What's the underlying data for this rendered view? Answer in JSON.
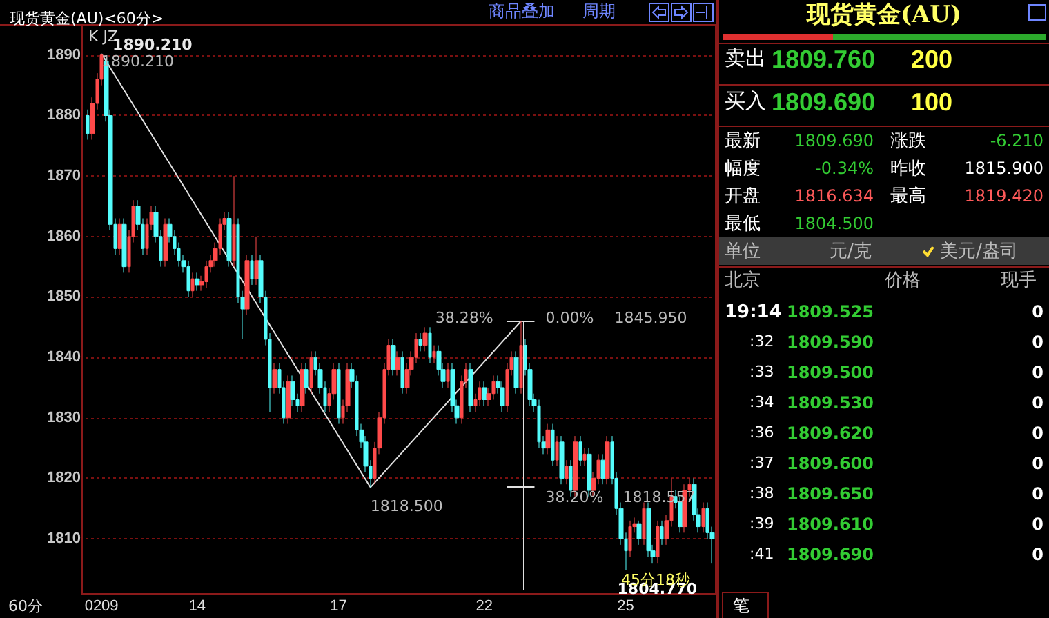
{
  "chart_data": [
    {
      "type": "candlestick",
      "title": "现货黄金(AU)<60分>",
      "categories": [
        null,
        null,
        null,
        "0209",
        null,
        null,
        null,
        null,
        null,
        null,
        null,
        null,
        null,
        null,
        null,
        null,
        null,
        null,
        null,
        null,
        null,
        null,
        null,
        null,
        "14",
        null,
        null,
        null,
        null,
        null,
        null,
        null,
        null,
        null,
        null,
        null,
        null,
        null,
        null,
        null,
        null,
        null,
        null,
        null,
        null,
        null,
        null,
        null,
        null,
        null,
        null,
        null,
        null,
        null,
        null,
        "17",
        null,
        null,
        null,
        null,
        null,
        null,
        null,
        null,
        null,
        null,
        null,
        null,
        null,
        null,
        null,
        null,
        null,
        null,
        null,
        null,
        null,
        null,
        null,
        null,
        null,
        null,
        null,
        null,
        null,
        null,
        null,
        "22",
        null,
        null,
        null,
        null,
        null,
        null,
        null,
        null,
        null,
        null,
        null,
        null,
        null,
        null,
        null,
        null,
        null,
        null,
        null,
        null,
        null,
        null,
        null,
        null,
        null,
        null,
        null,
        null,
        null,
        null,
        "25",
        null,
        null,
        null,
        null,
        null,
        null,
        null,
        null,
        null,
        null,
        null,
        null,
        null,
        null,
        null,
        null,
        null,
        null,
        null
      ],
      "ohlc": [
        [
          1880,
          1881,
          1876,
          1877
        ],
        [
          1877,
          1883,
          1876,
          1882
        ],
        [
          1882,
          1887,
          1881,
          1886
        ],
        [
          1886,
          1890.21,
          1885,
          1890
        ],
        [
          1889,
          1889.5,
          1879,
          1880
        ],
        [
          1880,
          1881,
          1861,
          1862
        ],
        [
          1862,
          1863,
          1857,
          1858
        ],
        [
          1858,
          1863,
          1857,
          1862
        ],
        [
          1862,
          1863,
          1854,
          1855
        ],
        [
          1855,
          1861,
          1854,
          1860
        ],
        [
          1860,
          1866,
          1859,
          1865
        ],
        [
          1865,
          1866,
          1861,
          1862
        ],
        [
          1862,
          1863,
          1857,
          1858
        ],
        [
          1858,
          1863,
          1857,
          1862
        ],
        [
          1862,
          1865,
          1861,
          1864
        ],
        [
          1864,
          1865,
          1859,
          1860
        ],
        [
          1860,
          1861,
          1855,
          1856
        ],
        [
          1856,
          1863,
          1855,
          1862
        ],
        [
          1862,
          1863,
          1859,
          1860
        ],
        [
          1860,
          1861,
          1857,
          1858
        ],
        [
          1858,
          1859,
          1855,
          1856
        ],
        [
          1856,
          1857,
          1854,
          1855
        ],
        [
          1855,
          1856,
          1850,
          1851
        ],
        [
          1851,
          1854,
          1850,
          1853
        ],
        [
          1853,
          1854,
          1851,
          1852
        ],
        [
          1852,
          1853.5,
          1851,
          1852.5
        ],
        [
          1852.5,
          1856,
          1851.5,
          1855
        ],
        [
          1855,
          1857,
          1854,
          1856
        ],
        [
          1856,
          1859,
          1855,
          1858
        ],
        [
          1858,
          1863,
          1857,
          1862
        ],
        [
          1862,
          1864,
          1861,
          1863
        ],
        [
          1863,
          1864,
          1855,
          1856
        ],
        [
          1856,
          1870,
          1855,
          1862
        ],
        [
          1862,
          1863,
          1849,
          1850
        ],
        [
          1850,
          1851,
          1843,
          1848
        ],
        [
          1848,
          1857,
          1847,
          1856
        ],
        [
          1856,
          1857,
          1852,
          1853
        ],
        [
          1853,
          1860,
          1852,
          1856
        ],
        [
          1856,
          1857,
          1849,
          1850
        ],
        [
          1850,
          1851,
          1842,
          1843
        ],
        [
          1843,
          1844,
          1831,
          1835
        ],
        [
          1835,
          1839,
          1834,
          1838
        ],
        [
          1838,
          1839,
          1834,
          1835
        ],
        [
          1835,
          1836,
          1829,
          1830
        ],
        [
          1830,
          1837,
          1829,
          1836
        ],
        [
          1836,
          1837,
          1832,
          1833
        ],
        [
          1833,
          1834,
          1831,
          1832
        ],
        [
          1832,
          1839,
          1831,
          1838
        ],
        [
          1838,
          1839,
          1834,
          1835
        ],
        [
          1835,
          1841,
          1834,
          1840
        ],
        [
          1840,
          1841,
          1837,
          1838
        ],
        [
          1838,
          1839,
          1834,
          1835
        ],
        [
          1835,
          1836,
          1831,
          1832
        ],
        [
          1832,
          1835,
          1831,
          1834
        ],
        [
          1834,
          1839,
          1833,
          1838
        ],
        [
          1838,
          1839,
          1829,
          1830
        ],
        [
          1830,
          1833,
          1829,
          1832
        ],
        [
          1832,
          1839,
          1831,
          1838
        ],
        [
          1838,
          1839,
          1835,
          1836
        ],
        [
          1836,
          1837,
          1827,
          1828
        ],
        [
          1828,
          1829,
          1825,
          1826
        ],
        [
          1826,
          1827,
          1821,
          1822
        ],
        [
          1822,
          1823,
          1818.5,
          1820
        ],
        [
          1820,
          1826,
          1819,
          1825
        ],
        [
          1825,
          1831,
          1824,
          1830
        ],
        [
          1830,
          1839,
          1829,
          1838
        ],
        [
          1838,
          1843,
          1837,
          1842
        ],
        [
          1842,
          1843,
          1837,
          1838
        ],
        [
          1838,
          1841,
          1837,
          1840
        ],
        [
          1840,
          1841,
          1834,
          1835
        ],
        [
          1835,
          1839,
          1834,
          1838
        ],
        [
          1838,
          1841,
          1837,
          1840
        ],
        [
          1840,
          1844,
          1839,
          1843
        ],
        [
          1843,
          1844,
          1841,
          1842
        ],
        [
          1842,
          1845,
          1841,
          1844
        ],
        [
          1844,
          1845,
          1839,
          1840
        ],
        [
          1840,
          1842,
          1839,
          1841
        ],
        [
          1841,
          1842,
          1837,
          1838
        ],
        [
          1838,
          1839,
          1835,
          1836
        ],
        [
          1836,
          1839,
          1835,
          1838
        ],
        [
          1838,
          1839,
          1831,
          1832
        ],
        [
          1832,
          1833,
          1829,
          1830
        ],
        [
          1830,
          1837,
          1829,
          1836
        ],
        [
          1836,
          1839,
          1835,
          1838
        ],
        [
          1838,
          1839,
          1831,
          1832
        ],
        [
          1832,
          1834,
          1831,
          1833
        ],
        [
          1833,
          1836,
          1832,
          1835
        ],
        [
          1835,
          1836,
          1832,
          1833
        ],
        [
          1833,
          1835,
          1832,
          1834
        ],
        [
          1834,
          1837,
          1833,
          1836
        ],
        [
          1836,
          1837,
          1834,
          1835
        ],
        [
          1835,
          1836,
          1831,
          1832
        ],
        [
          1832,
          1839,
          1831,
          1838
        ],
        [
          1838,
          1841,
          1837,
          1840
        ],
        [
          1840,
          1841,
          1834,
          1835
        ],
        [
          1835,
          1845.95,
          1834,
          1842
        ],
        [
          1842,
          1843,
          1837,
          1838
        ],
        [
          1838,
          1839,
          1832,
          1833
        ],
        [
          1833,
          1834,
          1831,
          1832
        ],
        [
          1832,
          1833,
          1825,
          1826
        ],
        [
          1826,
          1827,
          1824,
          1825
        ],
        [
          1825,
          1829,
          1824,
          1828
        ],
        [
          1828,
          1829,
          1822,
          1823
        ],
        [
          1823,
          1827,
          1822,
          1826
        ],
        [
          1826,
          1827,
          1819,
          1820
        ],
        [
          1820,
          1823,
          1819,
          1822
        ],
        [
          1822,
          1823,
          1817,
          1818
        ],
        [
          1818,
          1827,
          1817,
          1826
        ],
        [
          1826,
          1827,
          1822,
          1823
        ],
        [
          1823,
          1825,
          1822,
          1824
        ],
        [
          1824,
          1825,
          1817,
          1818
        ],
        [
          1818,
          1821,
          1817,
          1820
        ],
        [
          1820,
          1824,
          1819,
          1823
        ],
        [
          1823,
          1824,
          1819,
          1820
        ],
        [
          1820,
          1827,
          1819,
          1826
        ],
        [
          1826,
          1827,
          1819,
          1820
        ],
        [
          1820,
          1821,
          1814,
          1815
        ],
        [
          1815,
          1816,
          1809,
          1810
        ],
        [
          1810,
          1811,
          1804.77,
          1808
        ],
        [
          1808,
          1813,
          1807,
          1812
        ],
        [
          1812,
          1813.5,
          1811,
          1812.5
        ],
        [
          1812.5,
          1813,
          1809,
          1810
        ],
        [
          1810,
          1816,
          1809,
          1815
        ],
        [
          1815,
          1816,
          1807,
          1808
        ],
        [
          1808,
          1809,
          1806,
          1807
        ],
        [
          1807,
          1813,
          1806,
          1812
        ],
        [
          1812,
          1813,
          1809,
          1810
        ],
        [
          1810,
          1814,
          1809,
          1813
        ],
        [
          1813,
          1820,
          1812,
          1817
        ],
        [
          1817,
          1818,
          1815,
          1816
        ],
        [
          1816,
          1817,
          1811,
          1812
        ],
        [
          1812,
          1819,
          1811,
          1818
        ],
        [
          1818,
          1820,
          1817,
          1819
        ],
        [
          1819,
          1820,
          1813,
          1814
        ],
        [
          1814,
          1815,
          1811,
          1812
        ],
        [
          1812,
          1816,
          1811,
          1815
        ],
        [
          1815,
          1816,
          1810,
          1811
        ],
        [
          1811,
          1812,
          1806,
          1810
        ]
      ],
      "series": [
        {
          "type": "line",
          "color": "#e0e0e0",
          "values": [
            null,
            null,
            null,
            1890.21,
            null,
            null,
            null,
            null,
            null,
            null,
            null,
            null,
            null,
            null,
            null,
            null,
            null,
            null,
            null,
            null,
            null,
            null,
            null,
            null,
            null,
            null,
            null,
            null,
            null,
            null,
            null,
            null,
            null,
            null,
            null,
            null,
            null,
            null,
            null,
            null,
            null,
            null,
            null,
            null,
            null,
            null,
            null,
            null,
            null,
            null,
            null,
            null,
            null,
            null,
            null,
            null,
            null,
            null,
            null,
            null,
            null,
            null,
            1818.5,
            null,
            null,
            null,
            null,
            null,
            null,
            null,
            null,
            null,
            null,
            null,
            null,
            null,
            null,
            null,
            null,
            null,
            null,
            null,
            null,
            null,
            null,
            null,
            null,
            null,
            null,
            null,
            null,
            null,
            null,
            null,
            null,
            1845.95,
            null,
            null,
            null,
            null,
            null,
            null,
            null,
            null,
            null,
            null,
            null,
            null,
            null,
            null,
            null,
            null,
            null,
            null,
            null,
            null,
            null,
            null,
            null,
            null,
            null,
            null,
            null,
            null,
            null,
            null,
            null,
            null,
            null,
            null,
            null,
            null,
            null,
            null,
            null,
            null,
            null,
            null
          ]
        },
        {
          "type": "line",
          "color": "#e0e0e0",
          "values": [
            null,
            null,
            null,
            null,
            null,
            null,
            null,
            null,
            null,
            null,
            null,
            null,
            null,
            null,
            null,
            null,
            null,
            null,
            null,
            null,
            null,
            null,
            null,
            null,
            null,
            null,
            null,
            null,
            null,
            null,
            null,
            null,
            null,
            null,
            null,
            null,
            null,
            null,
            null,
            null,
            null,
            null,
            null,
            null,
            null,
            null,
            null,
            null,
            null,
            null,
            null,
            null,
            null,
            null,
            null,
            null,
            null,
            null,
            null,
            null,
            null,
            null,
            null,
            null,
            null,
            null,
            null,
            null,
            null,
            null,
            null,
            null,
            null,
            null,
            null,
            null,
            null,
            null,
            null,
            null,
            null,
            null,
            null,
            null,
            null,
            null,
            null,
            null,
            null,
            null,
            null,
            null,
            1845.95,
            null,
            null,
            null,
            null,
            null,
            1845.95,
            null,
            null,
            null,
            null,
            null,
            null,
            null,
            null,
            null,
            null,
            null,
            null,
            null,
            null,
            null,
            null,
            null,
            null,
            null,
            null,
            null,
            null,
            null,
            null,
            null,
            null,
            null,
            null,
            null,
            null,
            null,
            null,
            null,
            null,
            null,
            null,
            null,
            null,
            null
          ]
        },
        {
          "type": "line",
          "color": "#e0e0e0",
          "values": [
            null,
            null,
            null,
            null,
            null,
            null,
            null,
            null,
            null,
            null,
            null,
            null,
            null,
            null,
            null,
            null,
            null,
            null,
            null,
            null,
            null,
            null,
            null,
            null,
            null,
            null,
            null,
            null,
            null,
            null,
            null,
            null,
            null,
            null,
            null,
            null,
            null,
            null,
            null,
            null,
            null,
            null,
            null,
            null,
            null,
            null,
            null,
            null,
            null,
            null,
            null,
            null,
            null,
            null,
            null,
            null,
            null,
            null,
            null,
            null,
            null,
            null,
            null,
            null,
            null,
            null,
            null,
            null,
            null,
            null,
            null,
            null,
            null,
            null,
            null,
            null,
            null,
            null,
            null,
            null,
            null,
            null,
            null,
            null,
            null,
            null,
            null,
            null,
            null,
            null,
            null,
            null,
            1818.557,
            null,
            null,
            null,
            null,
            null,
            1818.557,
            null,
            null,
            null,
            null,
            null,
            null,
            null,
            null,
            null,
            null,
            null,
            null,
            null,
            null,
            null,
            null,
            null,
            null,
            null,
            null,
            null,
            null,
            null,
            null,
            null,
            null,
            null,
            null,
            null,
            null,
            null,
            null,
            null,
            null,
            null,
            null,
            null,
            null,
            null
          ]
        }
      ],
      "ylim": [
        1801,
        1895
      ],
      "yticks": [
        1810,
        1820,
        1830,
        1840,
        1850,
        1860,
        1870,
        1880,
        1890
      ],
      "grid": "y",
      "annotations": [
        "K JZ",
        "60分",
        "商品叠加",
        "周期",
        "1890.210",
        "1890.210",
        "38.28%",
        "0.00%",
        "1845.950",
        "38.20%",
        "1818.557",
        "1818.500",
        "1804.770",
        "45分18秒"
      ]
    },
    {
      "type": "other",
      "title": "现货黄金(AU)",
      "annotations": [
        "卖出",
        "1809.760",
        "200",
        "买入",
        "1809.690",
        "100",
        "最新",
        "1809.690",
        "涨跌",
        "-6.210",
        "幅度",
        "-0.34%",
        "昨收",
        "1815.900",
        "开盘",
        "1816.634",
        "最高",
        "1819.420",
        "最低",
        "1804.500",
        "单位",
        "元/克",
        "美元/盎司",
        "北京",
        "价格",
        "现手",
        "19:14",
        "1809.525",
        "0",
        ":32",
        "1809.590",
        "0",
        ":33",
        "1809.500",
        "0",
        ":34",
        "1809.530",
        "0",
        ":36",
        "1809.620",
        "0",
        ":37",
        "1809.600",
        "0",
        ":38",
        "1809.650",
        "0",
        ":39",
        "1809.610",
        "0",
        ":41",
        "1809.690",
        "0",
        "笔"
      ]
    }
  ]
}
